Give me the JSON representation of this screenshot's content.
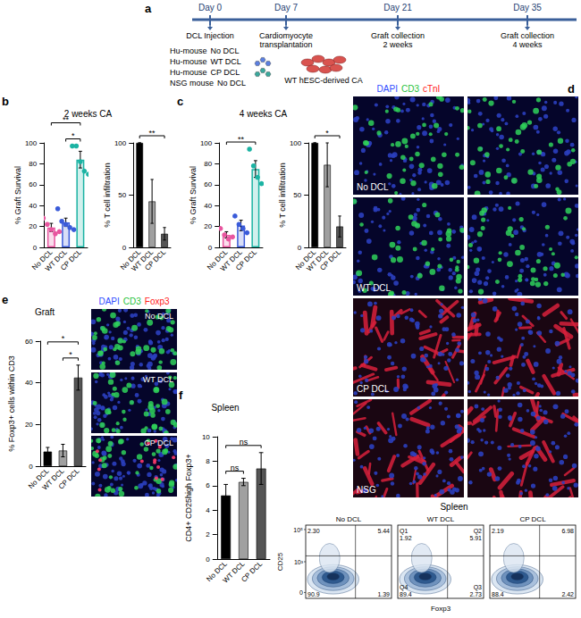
{
  "figure": {
    "timeline": {
      "panel": "a",
      "days": [
        "Day 0",
        "Day 7",
        "Day 21",
        "Day 35"
      ],
      "events": [
        {
          "day": "Day 0",
          "lines": [
            "DCL Injection"
          ]
        },
        {
          "day": "Day 7",
          "lines": [
            "Cardiomyocyte",
            "transplantation"
          ]
        },
        {
          "day": "Day 21",
          "lines": [
            "Graft collection",
            "2 weeks"
          ]
        },
        {
          "day": "Day 35",
          "lines": [
            "Graft collection",
            "4 weeks"
          ]
        }
      ],
      "groups": [
        {
          "mouse": "Hu-mouse",
          "treatment": "No DCL"
        },
        {
          "mouse": "Hu-mouse",
          "treatment": "WT DCL",
          "color": "#5b7fe0"
        },
        {
          "mouse": "Hu-mouse",
          "treatment": "CP DCL",
          "color": "#3aa89c"
        },
        {
          "mouse": "NSG mouse",
          "treatment": "No DCL"
        }
      ],
      "cells": {
        "label": "WT hESC-derived CA",
        "color": "#d9534f"
      }
    },
    "images_d": {
      "panel": "d",
      "stains": [
        {
          "text": "DAPI",
          "color": "#2f4dff"
        },
        {
          "text": "CD3",
          "color": "#1fc23a"
        },
        {
          "text": "cTnI",
          "color": "#ff2020"
        }
      ],
      "rows": [
        "No DCL",
        "WT DCL",
        "CP DCL",
        "NSG"
      ]
    },
    "images_e": {
      "stains": [
        {
          "text": "DAPI",
          "color": "#2f4dff"
        },
        {
          "text": "CD3",
          "color": "#1fc23a"
        },
        {
          "text": "Foxp3",
          "color": "#ff2020"
        }
      ],
      "rows": [
        "No DCL",
        "WT DCL",
        "CP DCL"
      ]
    },
    "flow": {
      "title": "Spleen",
      "xlabel": "Foxp3",
      "ylabel": "CD25",
      "yticks": [
        "10⁵",
        "10³",
        "0"
      ],
      "plots": [
        {
          "label": "No DCL",
          "quadrants": [
            {
              "value": "2.30"
            },
            {
              "value": "5.44"
            },
            {
              "value": "1.39"
            },
            {
              "value": "90.9"
            }
          ]
        },
        {
          "label": "WT DCL",
          "quadrants": [
            {
              "name": "Q1",
              "value": "1.92"
            },
            {
              "name": "Q2",
              "value": "5.91"
            },
            {
              "name": "Q3",
              "value": "2.73"
            },
            {
              "name": "Q4",
              "value": "89.4"
            }
          ]
        },
        {
          "label": "CP DCL",
          "quadrants": [
            {
              "value": "2.19"
            },
            {
              "value": "6.98"
            },
            {
              "value": "2.42"
            },
            {
              "value": "88.4"
            }
          ]
        }
      ]
    }
  },
  "chart_data": [
    {
      "panel": "b",
      "title": "2 weeks CA",
      "type": "bar",
      "ylabel": "% Graft Survival",
      "categories": [
        "No DCL",
        "WT DCL",
        "CP DCL"
      ],
      "values": [
        19,
        24,
        84
      ],
      "errors": [
        4,
        4,
        8
      ],
      "points": [
        [
          28,
          22,
          17,
          13,
          15
        ],
        [
          37,
          25,
          22,
          19,
          17
        ],
        [
          97,
          97,
          82,
          73,
          70
        ]
      ],
      "colors": [
        "#e8559f",
        "#3a5bd9",
        "#1bb3a3"
      ],
      "ylim": [
        0,
        100
      ],
      "yticks": [
        0,
        20,
        40,
        60,
        80,
        100
      ],
      "grid": false,
      "significance": [
        {
          "pair": [
            "WT DCL",
            "CP DCL"
          ],
          "label": "*"
        },
        {
          "pair": [
            "No DCL",
            "CP DCL"
          ],
          "label": "**"
        }
      ]
    },
    {
      "type": "bar",
      "ylabel": "% T cell infiltration",
      "categories": [
        "No DCL",
        "WT DCL",
        "CP DCL"
      ],
      "values": [
        100,
        44,
        13
      ],
      "errors": [
        0,
        21,
        6
      ],
      "colors": [
        "#000000",
        "#a0a0a0",
        "#555555"
      ],
      "ylim": [
        0,
        100
      ],
      "yticks": [
        0,
        50,
        100
      ],
      "grid": false,
      "significance": [
        {
          "pair": [
            "No DCL",
            "CP DCL"
          ],
          "label": "**"
        }
      ]
    },
    {
      "panel": "c",
      "title": "4 weeks CA",
      "type": "bar",
      "ylabel": "% Graft Survival",
      "categories": [
        "No DCL",
        "WT DCL",
        "CP DCL"
      ],
      "values": [
        12,
        21,
        75
      ],
      "errors": [
        3,
        5,
        8
      ],
      "points": [
        [
          18,
          12,
          8,
          10
        ],
        [
          30,
          22,
          18,
          14
        ],
        [
          94,
          78,
          67,
          61
        ]
      ],
      "colors": [
        "#e8559f",
        "#3a5bd9",
        "#1bb3a3"
      ],
      "ylim": [
        0,
        100
      ],
      "yticks": [
        0,
        20,
        40,
        60,
        80,
        100
      ],
      "grid": false,
      "significance": [
        {
          "pair": [
            "No DCL",
            "CP DCL"
          ],
          "label": "**"
        }
      ]
    },
    {
      "type": "bar",
      "ylabel": "% T cell infiltration",
      "categories": [
        "No DCL",
        "WT DCL",
        "CP DCL"
      ],
      "values": [
        100,
        79,
        20
      ],
      "errors": [
        0,
        21,
        10
      ],
      "colors": [
        "#000000",
        "#a0a0a0",
        "#555555"
      ],
      "ylim": [
        0,
        100
      ],
      "yticks": [
        0,
        50,
        100
      ],
      "grid": false,
      "significance": [
        {
          "pair": [
            "No DCL",
            "CP DCL"
          ],
          "label": "*"
        }
      ]
    },
    {
      "panel": "e",
      "title": "Graft",
      "type": "bar",
      "ylabel": "% Foxp3+ cells within CD3",
      "categories": [
        "No DCL",
        "WT DCL",
        "CP DCL"
      ],
      "values": [
        7,
        7.5,
        42.5
      ],
      "errors": [
        2,
        3,
        6
      ],
      "colors": [
        "#000000",
        "#a0a0a0",
        "#555555"
      ],
      "ylim": [
        0,
        60
      ],
      "yticks": [
        0,
        20,
        40,
        60
      ],
      "grid": false,
      "significance": [
        {
          "pair": [
            "WT DCL",
            "CP DCL"
          ],
          "label": "*"
        },
        {
          "pair": [
            "No DCL",
            "CP DCL"
          ],
          "label": "*"
        }
      ]
    },
    {
      "panel": "f",
      "title": "Spleen",
      "type": "bar",
      "ylabel": "CD4+ CD25high Foxp3+",
      "categories": [
        "No DCL",
        "WT DCL",
        "CP DCL"
      ],
      "values": [
        5.2,
        6.3,
        7.4
      ],
      "errors": [
        0.9,
        0.3,
        1.3
      ],
      "colors": [
        "#000000",
        "#a0a0a0",
        "#555555"
      ],
      "ylim": [
        0,
        10
      ],
      "yticks": [
        0,
        2,
        4,
        6,
        8,
        10
      ],
      "grid": false,
      "significance": [
        {
          "pair": [
            "No DCL",
            "WT DCL"
          ],
          "label": "ns"
        },
        {
          "pair": [
            "No DCL",
            "CP DCL"
          ],
          "label": "ns"
        }
      ]
    }
  ]
}
